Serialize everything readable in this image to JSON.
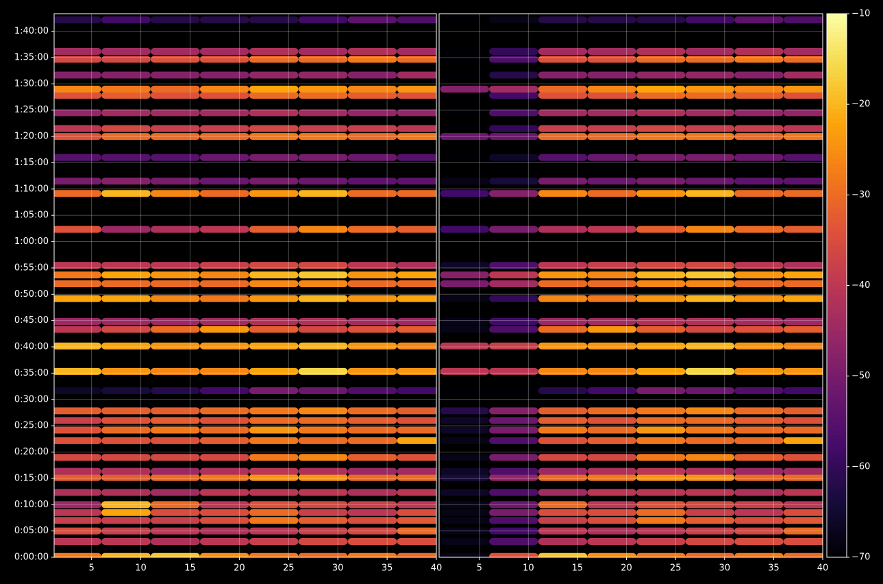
{
  "chart_data": [
    {
      "type": "heatmap",
      "colormap": "inferno",
      "grid": true,
      "x": [
        3.5,
        8.5,
        13.5,
        18.5,
        23.5,
        28.5,
        33.5,
        38.5
      ],
      "y": [
        10,
        180,
        300,
        420,
        510,
        600,
        740,
        910,
        980,
        1140,
        1330,
        1450,
        1560,
        1670,
        1900,
        2120,
        2410,
        2600,
        2690,
        2950,
        3120,
        3220,
        3330,
        3740,
        4150,
        4290,
        4560,
        4800,
        4890,
        5070,
        5270,
        5340,
        5500,
        5680,
        5770,
        6130
      ],
      "z": [
        [
          -28,
          -20,
          -18,
          -25,
          -28,
          -30,
          -28,
          -30
        ],
        [
          -40,
          -40,
          -42,
          -40,
          -38,
          -36,
          -35,
          -35
        ],
        [
          -35,
          -38,
          -40,
          -42,
          -40,
          -38,
          -36,
          -30
        ],
        [
          -38,
          -38,
          -38,
          -35,
          -28,
          -32,
          -35,
          -33
        ],
        [
          -40,
          -22,
          -35,
          -35,
          -30,
          -38,
          -40,
          -35
        ],
        [
          -45,
          -20,
          -30,
          -40,
          -34,
          -36,
          -38,
          -40
        ],
        [
          -42,
          -42,
          -44,
          -40,
          -40,
          -40,
          -42,
          -40
        ],
        [
          -32,
          -32,
          -30,
          -28,
          -24,
          -24,
          -30,
          -30
        ],
        [
          -42,
          -42,
          -45,
          -42,
          -40,
          -42,
          -45,
          -44
        ],
        [
          -36,
          -36,
          -36,
          -36,
          -28,
          -26,
          -32,
          -34
        ],
        [
          -34,
          -34,
          -34,
          -32,
          -28,
          -30,
          -30,
          -22
        ],
        [
          -34,
          -30,
          -28,
          -30,
          -24,
          -28,
          -30,
          -30
        ],
        [
          -38,
          -34,
          -32,
          -34,
          -30,
          -30,
          -32,
          -34
        ],
        [
          -32,
          -32,
          -32,
          -30,
          -28,
          -26,
          -30,
          -32
        ],
        [
          -66,
          -64,
          -62,
          -58,
          -50,
          -52,
          -56,
          -58
        ],
        [
          -20,
          -24,
          -26,
          -26,
          -22,
          -16,
          -24,
          -24
        ],
        [
          -20,
          -22,
          -24,
          -24,
          -22,
          -20,
          -24,
          -26
        ],
        [
          -40,
          -36,
          -30,
          -24,
          -32,
          -36,
          -34,
          -32
        ],
        [
          -45,
          -45,
          -45,
          -44,
          -42,
          -42,
          -44,
          -45
        ],
        [
          -22,
          -22,
          -26,
          -28,
          -24,
          -20,
          -24,
          -22
        ],
        [
          -30,
          -30,
          -30,
          -30,
          -26,
          -26,
          -30,
          -30
        ],
        [
          -28,
          -22,
          -24,
          -26,
          -20,
          -18,
          -24,
          -22
        ],
        [
          -40,
          -40,
          -40,
          -38,
          -36,
          -36,
          -40,
          -42
        ],
        [
          -34,
          -45,
          -42,
          -40,
          -32,
          -26,
          -30,
          -32
        ],
        [
          -30,
          -20,
          -26,
          -30,
          -24,
          -20,
          -30,
          -30
        ],
        [
          -50,
          -48,
          -50,
          -52,
          -50,
          -52,
          -54,
          -54
        ],
        [
          -55,
          -55,
          -55,
          -52,
          -50,
          -50,
          -52,
          -55
        ],
        [
          -34,
          -30,
          -30,
          -30,
          -28,
          -28,
          -30,
          -28
        ],
        [
          -40,
          -36,
          -38,
          -38,
          -36,
          -38,
          -38,
          -40
        ],
        [
          -46,
          -44,
          -44,
          -44,
          -42,
          -44,
          -46,
          -46
        ],
        [
          -34,
          -32,
          -34,
          -34,
          -30,
          -30,
          -32,
          -34
        ],
        [
          -26,
          -28,
          -30,
          -26,
          -22,
          -24,
          -26,
          -24
        ],
        [
          -48,
          -48,
          -48,
          -48,
          -46,
          -46,
          -48,
          -44
        ],
        [
          -36,
          -36,
          -34,
          -34,
          -30,
          -30,
          -28,
          -30
        ],
        [
          -44,
          -44,
          -44,
          -44,
          -42,
          -44,
          -42,
          -44
        ],
        [
          -62,
          -58,
          -62,
          -62,
          -62,
          -58,
          -54,
          -56
        ]
      ],
      "xlim": [
        1.2,
        40
      ],
      "xticks": [
        5,
        10,
        15,
        20,
        25,
        30,
        35,
        40
      ],
      "ylim": [
        0,
        6200
      ],
      "yticks": [
        {
          "value": 0,
          "label": "0:00:00"
        },
        {
          "value": 300,
          "label": "0:05:00"
        },
        {
          "value": 600,
          "label": "0:10:00"
        },
        {
          "value": 900,
          "label": "0:15:00"
        },
        {
          "value": 1200,
          "label": "0:20:00"
        },
        {
          "value": 1500,
          "label": "0:25:00"
        },
        {
          "value": 1800,
          "label": "0:30:00"
        },
        {
          "value": 2100,
          "label": "0:35:00"
        },
        {
          "value": 2400,
          "label": "0:40:00"
        },
        {
          "value": 2700,
          "label": "0:45:00"
        },
        {
          "value": 3000,
          "label": "0:50:00"
        },
        {
          "value": 3300,
          "label": "0:55:00"
        },
        {
          "value": 3600,
          "label": "1:00:00"
        },
        {
          "value": 3900,
          "label": "1:05:00"
        },
        {
          "value": 4200,
          "label": "1:10:00"
        },
        {
          "value": 4500,
          "label": "1:15:00"
        },
        {
          "value": 4800,
          "label": "1:20:00"
        },
        {
          "value": 5100,
          "label": "1:25:00"
        },
        {
          "value": 5400,
          "label": "1:30:00"
        },
        {
          "value": 5700,
          "label": "1:35:00"
        },
        {
          "value": 6000,
          "label": "1:40:00"
        }
      ]
    },
    {
      "type": "heatmap",
      "colormap": "inferno",
      "grid": true,
      "x": [
        3.5,
        8.5,
        13.5,
        18.5,
        23.5,
        28.5,
        33.5,
        38.5
      ],
      "y": [
        10,
        180,
        300,
        420,
        510,
        600,
        740,
        910,
        980,
        1140,
        1330,
        1450,
        1560,
        1670,
        1900,
        2120,
        2410,
        2600,
        2690,
        2950,
        3120,
        3220,
        3330,
        3740,
        4150,
        4290,
        4560,
        4800,
        4890,
        5070,
        5270,
        5340,
        5500,
        5680,
        5770,
        6130
      ],
      "z": [
        [
          -68,
          -34,
          -18,
          -25,
          -28,
          -30,
          -28,
          -30
        ],
        [
          -68,
          -56,
          -42,
          -40,
          -38,
          -36,
          -35,
          -35
        ],
        [
          -68,
          -58,
          -40,
          -42,
          -40,
          -38,
          -36,
          -30
        ],
        [
          -68,
          -56,
          -38,
          -35,
          -28,
          -32,
          -35,
          -33
        ],
        [
          -68,
          -50,
          -35,
          -35,
          -30,
          -38,
          -40,
          -35
        ],
        [
          -68,
          -52,
          -30,
          -40,
          -34,
          -36,
          -38,
          -40
        ],
        [
          -66,
          -56,
          -44,
          -40,
          -40,
          -40,
          -42,
          -40
        ],
        [
          -64,
          -46,
          -30,
          -28,
          -24,
          -24,
          -30,
          -30
        ],
        [
          -66,
          -56,
          -45,
          -42,
          -40,
          -42,
          -45,
          -44
        ],
        [
          -68,
          -50,
          -36,
          -36,
          -28,
          -26,
          -32,
          -34
        ],
        [
          -68,
          -56,
          -34,
          -32,
          -28,
          -30,
          -30,
          -22
        ],
        [
          -66,
          -50,
          -28,
          -30,
          -24,
          -28,
          -30,
          -30
        ],
        [
          -66,
          -52,
          -32,
          -34,
          -30,
          -30,
          -32,
          -34
        ],
        [
          -62,
          -48,
          -32,
          -30,
          -28,
          -26,
          -30,
          -32
        ],
        [
          -70,
          -70,
          -62,
          -58,
          -50,
          -52,
          -56,
          -58
        ],
        [
          -40,
          -40,
          -26,
          -26,
          -22,
          -16,
          -24,
          -24
        ],
        [
          -40,
          -38,
          -24,
          -24,
          -22,
          -20,
          -24,
          -26
        ],
        [
          -68,
          -56,
          -30,
          -24,
          -32,
          -36,
          -34,
          -32
        ],
        [
          -68,
          -58,
          -45,
          -44,
          -42,
          -42,
          -44,
          -45
        ],
        [
          -68,
          -60,
          -26,
          -28,
          -24,
          -20,
          -24,
          -22
        ],
        [
          -50,
          -44,
          -30,
          -30,
          -26,
          -26,
          -30,
          -30
        ],
        [
          -48,
          -40,
          -24,
          -26,
          -20,
          -18,
          -24,
          -22
        ],
        [
          -66,
          -56,
          -40,
          -38,
          -36,
          -36,
          -40,
          -42
        ],
        [
          -58,
          -50,
          -42,
          -40,
          -32,
          -26,
          -30,
          -32
        ],
        [
          -58,
          -48,
          -26,
          -30,
          -24,
          -20,
          -30,
          -30
        ],
        [
          -68,
          -64,
          -50,
          -52,
          -50,
          -52,
          -54,
          -54
        ],
        [
          -70,
          -66,
          -55,
          -52,
          -50,
          -50,
          -52,
          -55
        ],
        [
          -52,
          -52,
          -30,
          -30,
          -28,
          -28,
          -30,
          -28
        ],
        [
          -70,
          -60,
          -38,
          -38,
          -36,
          -38,
          -38,
          -40
        ],
        [
          -70,
          -56,
          -44,
          -44,
          -42,
          -44,
          -46,
          -46
        ],
        [
          -70,
          -58,
          -34,
          -34,
          -30,
          -30,
          -32,
          -34
        ],
        [
          -48,
          -44,
          -30,
          -26,
          -22,
          -24,
          -26,
          -24
        ],
        [
          -70,
          -62,
          -48,
          -48,
          -46,
          -46,
          -48,
          -44
        ],
        [
          -70,
          -56,
          -34,
          -34,
          -30,
          -30,
          -28,
          -30
        ],
        [
          -70,
          -60,
          -44,
          -44,
          -42,
          -44,
          -42,
          -44
        ],
        [
          -70,
          -68,
          -62,
          -62,
          -62,
          -58,
          -54,
          -56
        ]
      ],
      "xlim": [
        0.9,
        40
      ],
      "xticks": [
        5,
        10,
        15,
        20,
        25,
        30,
        35,
        40
      ],
      "ylim": [
        0,
        6200
      ]
    }
  ],
  "colorbar": {
    "colormap": "inferno",
    "clim": [
      -70,
      -10
    ],
    "ticks": [
      {
        "value": -10,
        "label": "−10"
      },
      {
        "value": -20,
        "label": "−20"
      },
      {
        "value": -30,
        "label": "−30"
      },
      {
        "value": -40,
        "label": "−40"
      },
      {
        "value": -50,
        "label": "−50"
      },
      {
        "value": -60,
        "label": "−60"
      },
      {
        "value": -70,
        "label": "−70"
      }
    ]
  }
}
